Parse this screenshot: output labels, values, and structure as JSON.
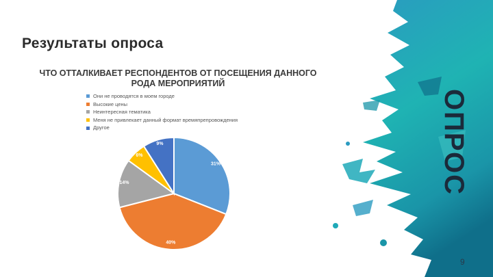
{
  "slide": {
    "title": "Результаты опроса",
    "side_label": "ОПРОС",
    "page_number": "9"
  },
  "chart_data": {
    "type": "pie",
    "title": "ЧТО ОТТАЛКИВАЕТ РЕСПОНДЕНТОВ ОТ ПОСЕЩЕНИЯ ДАННОГО РОДА МЕРОПРИЯТИЙ",
    "legend_position": "top-left",
    "slices": [
      {
        "label": "Они не проводятся в моем городе",
        "value": 31,
        "data_label": "31%",
        "color": "#5B9BD5"
      },
      {
        "label": "Высокие цены",
        "value": 40,
        "data_label": "40%",
        "color": "#ED7D31"
      },
      {
        "label": "Неинтересная тематика",
        "value": 14,
        "data_label": "14%",
        "color": "#A5A5A5"
      },
      {
        "label": "Меня не привлекает данный формат времяпрепровождения",
        "value": 6,
        "data_label": "6%",
        "color": "#FFC000"
      },
      {
        "label": "Другое",
        "value": 9,
        "data_label": "9%",
        "color": "#4472C4"
      }
    ]
  }
}
